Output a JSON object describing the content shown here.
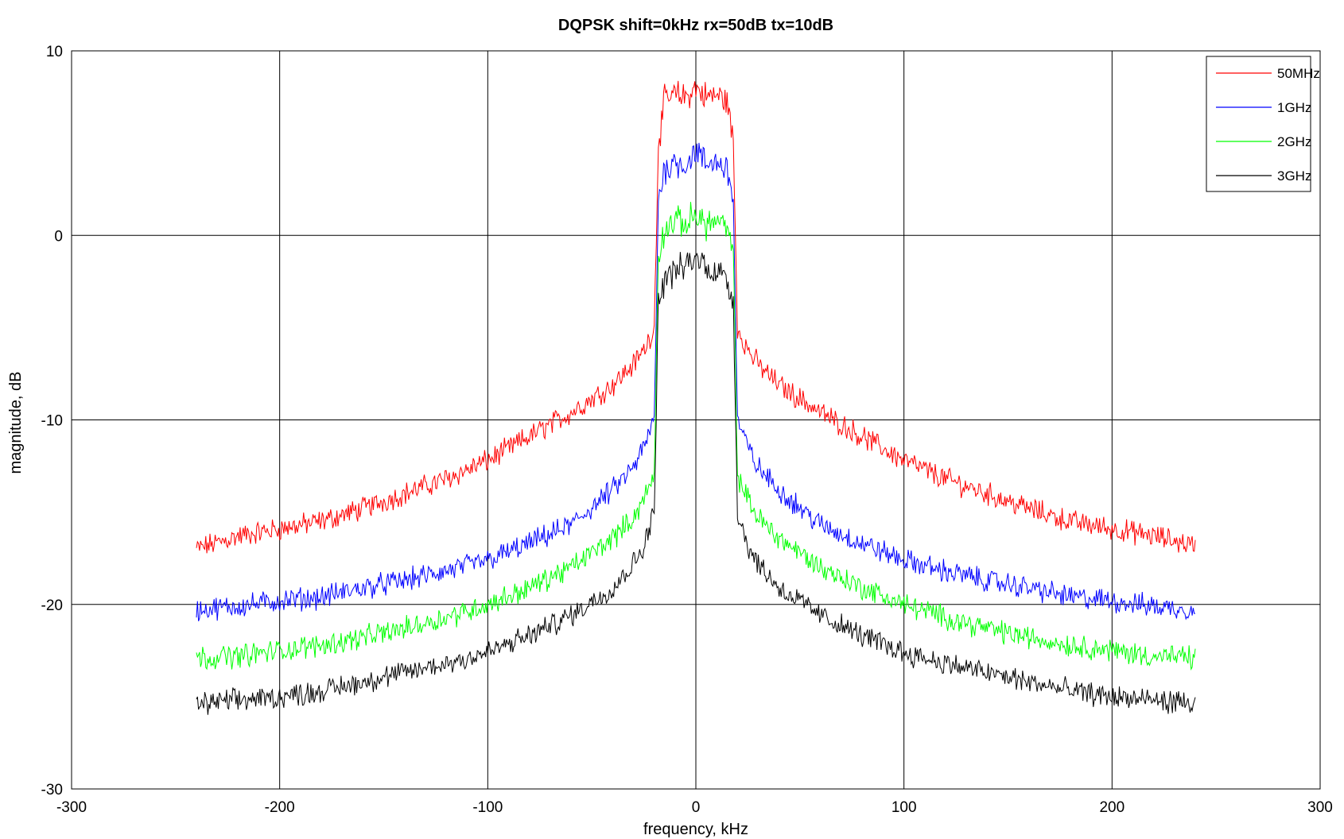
{
  "chart_data": {
    "type": "line",
    "title": "DQPSK shift=0kHz rx=50dB tx=10dB",
    "xlabel": "frequency, kHz",
    "ylabel": "magnitude, dB",
    "xlim": [
      -300,
      300
    ],
    "ylim": [
      -30,
      10
    ],
    "xticks": [
      -300,
      -200,
      -100,
      0,
      100,
      200,
      300
    ],
    "yticks": [
      -30,
      -20,
      -10,
      0,
      10
    ],
    "grid": true,
    "legend_position": "top-right",
    "x": [
      -240,
      -220,
      -200,
      -180,
      -160,
      -140,
      -120,
      -100,
      -80,
      -60,
      -40,
      -30,
      -25,
      -20,
      -18,
      -15,
      -10,
      -5,
      0,
      5,
      10,
      15,
      18,
      20,
      25,
      30,
      40,
      60,
      80,
      100,
      120,
      140,
      160,
      180,
      200,
      220,
      240
    ],
    "series": [
      {
        "name": "50MHz",
        "color": "#ff0000",
        "values": [
          -17.0,
          -16.3,
          -15.9,
          -15.5,
          -14.8,
          -14.0,
          -13.2,
          -12.2,
          -10.9,
          -9.6,
          -8.1,
          -7.0,
          -6.2,
          -5.0,
          5.0,
          7.3,
          7.6,
          7.5,
          8.0,
          7.5,
          7.6,
          7.3,
          5.0,
          -5.0,
          -6.2,
          -7.0,
          -8.1,
          -9.6,
          -10.9,
          -12.2,
          -13.2,
          -14.0,
          -14.8,
          -15.5,
          -15.9,
          -16.3,
          -16.8
        ]
      },
      {
        "name": "1GHz",
        "color": "#0000ff",
        "values": [
          -20.3,
          -20.1,
          -19.8,
          -19.6,
          -19.1,
          -18.7,
          -18.2,
          -17.6,
          -16.7,
          -15.7,
          -13.8,
          -12.6,
          -11.5,
          -10.0,
          2.0,
          3.6,
          4.0,
          3.8,
          4.6,
          3.8,
          4.0,
          3.6,
          2.0,
          -10.0,
          -11.5,
          -12.6,
          -13.8,
          -15.7,
          -16.7,
          -17.6,
          -18.2,
          -18.7,
          -19.1,
          -19.6,
          -19.8,
          -20.1,
          -20.3
        ]
      },
      {
        "name": "2GHz",
        "color": "#00ff00",
        "values": [
          -22.9,
          -22.8,
          -22.5,
          -22.2,
          -21.8,
          -21.3,
          -20.7,
          -20.0,
          -19.1,
          -18.0,
          -16.4,
          -15.3,
          -14.3,
          -13.0,
          -1.0,
          0.3,
          0.8,
          0.6,
          1.2,
          0.6,
          0.8,
          0.3,
          -1.0,
          -13.0,
          -14.3,
          -15.3,
          -16.4,
          -18.0,
          -19.1,
          -20.0,
          -20.7,
          -21.3,
          -21.8,
          -22.2,
          -22.5,
          -22.8,
          -22.9
        ]
      },
      {
        "name": "3GHz",
        "color": "#000000",
        "values": [
          -25.4,
          -25.2,
          -25.0,
          -24.7,
          -24.2,
          -23.7,
          -23.2,
          -22.6,
          -21.7,
          -20.6,
          -19.1,
          -17.8,
          -16.8,
          -15.0,
          -3.5,
          -2.4,
          -1.9,
          -1.7,
          -1.2,
          -1.7,
          -1.9,
          -2.4,
          -3.5,
          -15.0,
          -16.8,
          -17.8,
          -19.1,
          -20.6,
          -21.7,
          -22.6,
          -23.2,
          -23.7,
          -24.2,
          -24.7,
          -25.0,
          -25.2,
          -25.4
        ]
      }
    ]
  }
}
